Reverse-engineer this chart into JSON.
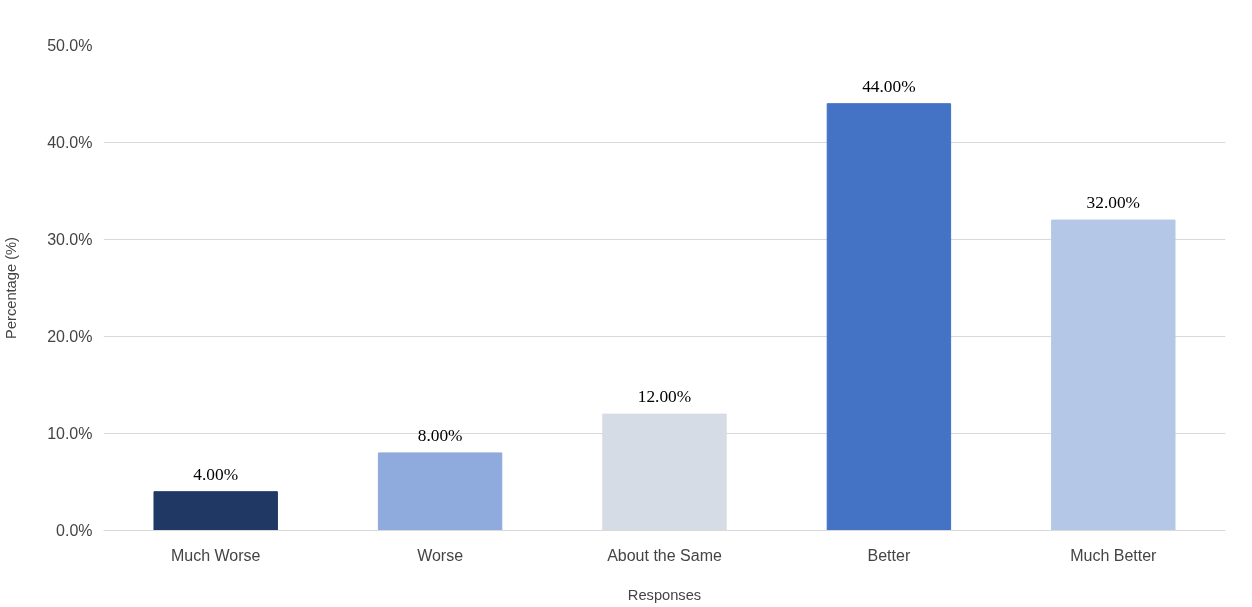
{
  "chart_data": {
    "type": "bar",
    "xlabel": "Responses",
    "ylabel": "Percentage (%)",
    "categories": [
      "Much Worse",
      "Worse",
      "About the Same",
      "Better",
      "Much Better"
    ],
    "values": [
      4,
      8,
      12,
      44,
      32
    ],
    "colors": [
      "#203864",
      "#8faadc",
      "#d6dce5",
      "#4472c4",
      "#b4c7e7"
    ],
    "value_labels": [
      "4.00%",
      "8.00%",
      "12.00%",
      "44.00%",
      "32.00%"
    ],
    "ylim": [
      0,
      50
    ],
    "yticks": [
      {
        "value": 0,
        "label": "0.0%"
      },
      {
        "value": 10,
        "label": "10.0%"
      },
      {
        "value": 20,
        "label": "20.0%"
      },
      {
        "value": 30,
        "label": "30.0%"
      },
      {
        "value": 40,
        "label": "40.0%"
      },
      {
        "value": 50,
        "label": "50.0%"
      }
    ],
    "grid": "y"
  }
}
